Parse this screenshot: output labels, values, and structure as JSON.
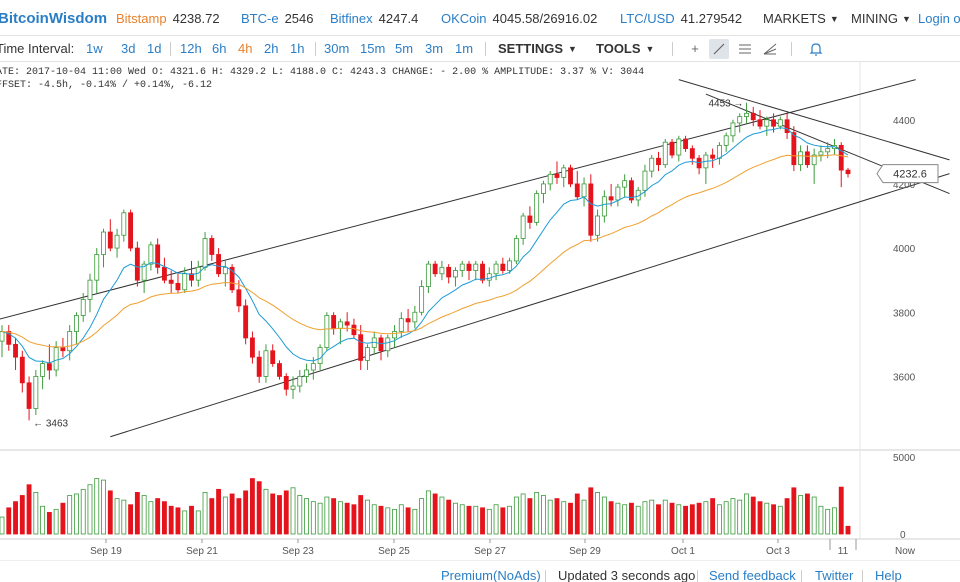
{
  "topbar": {
    "logo": "BitcoinWisdom",
    "tickers": [
      {
        "exchange": "Bitstamp",
        "price": "4238.72",
        "active": true
      },
      {
        "exchange": "BTC-e",
        "price": "2546",
        "active": false
      },
      {
        "exchange": "Bitfinex",
        "price": "4247.4",
        "active": false
      },
      {
        "exchange": "OKCoin",
        "price": "4045.58/26916.02",
        "active": false
      },
      {
        "exchange": "LTC/USD",
        "price": "41.279542",
        "active": false
      }
    ],
    "markets_label": "MARKETS",
    "mining_label": "MINING",
    "login_label": "Login or"
  },
  "toolbar": {
    "interval_label": "Time Interval:",
    "intervals": [
      "1w",
      "3d",
      "1d",
      "12h",
      "6h",
      "4h",
      "2h",
      "1h",
      "30m",
      "15m",
      "5m",
      "3m",
      "1m"
    ],
    "active_interval": "4h",
    "settings_label": "SETTINGS",
    "tools_label": "TOOLS"
  },
  "info": {
    "line1": "ATE: 2017-10-04 11:00 Wed    O: 4321.6    H: 4329.2    L: 4188.0    C: 4243.3    CHANGE: - 2.00 %    AMPLITUDE: 3.37 %    V: 3044",
    "line2": "FFSET: -4.5h, -0.14% / +0.14%, -6.12"
  },
  "colors": {
    "up": "#3c9b3c",
    "down": "#e5141c",
    "ema_fast": "#1d9bd6",
    "ema_slow": "#f0a030",
    "trend": "#333333",
    "accent": "#2a7ec6",
    "orange": "#e9812d"
  },
  "chart_data": {
    "type": "candlestick",
    "price_axis": {
      "ticks": [
        3600,
        3800,
        4000,
        4200,
        4400
      ],
      "range": [
        3380,
        4580
      ]
    },
    "volume_axis": {
      "ticks": [
        0,
        5000
      ],
      "range": [
        0,
        5000
      ]
    },
    "x_labels": [
      "Sep 19",
      "Sep 21",
      "Sep 23",
      "Sep 25",
      "Sep 27",
      "Sep 29",
      "Oct 1",
      "Oct 3",
      "11",
      "Now"
    ],
    "last_price_label": "4232.6",
    "high_annotation": "4453 →",
    "low_annotation": "← 3463",
    "high_value": 4453,
    "low_value": 3463,
    "candles": [
      [
        3710,
        3760,
        3660,
        3740,
        1100
      ],
      [
        3740,
        3760,
        3680,
        3700,
        1700
      ],
      [
        3700,
        3720,
        3620,
        3660,
        2100
      ],
      [
        3660,
        3680,
        3550,
        3580,
        2500
      ],
      [
        3580,
        3600,
        3463,
        3500,
        3200
      ],
      [
        3500,
        3620,
        3480,
        3600,
        2700
      ],
      [
        3600,
        3650,
        3560,
        3640,
        1800
      ],
      [
        3640,
        3700,
        3590,
        3620,
        1400
      ],
      [
        3620,
        3710,
        3600,
        3690,
        1600
      ],
      [
        3690,
        3720,
        3660,
        3680,
        2000
      ],
      [
        3680,
        3760,
        3650,
        3740,
        2500
      ],
      [
        3740,
        3800,
        3700,
        3790,
        2600
      ],
      [
        3790,
        3860,
        3770,
        3840,
        2900
      ],
      [
        3840,
        3920,
        3800,
        3900,
        3200
      ],
      [
        3900,
        4000,
        3860,
        3980,
        3600
      ],
      [
        3980,
        4060,
        3940,
        4050,
        3500
      ],
      [
        4050,
        4090,
        3990,
        4000,
        2800
      ],
      [
        4000,
        4060,
        3970,
        4040,
        2300
      ],
      [
        4040,
        4120,
        4020,
        4110,
        2200
      ],
      [
        4110,
        4120,
        3990,
        4000,
        1900
      ],
      [
        4000,
        4020,
        3880,
        3900,
        2700
      ],
      [
        3900,
        3960,
        3860,
        3950,
        2500
      ],
      [
        3950,
        4020,
        3930,
        4010,
        2100
      ],
      [
        4010,
        4030,
        3920,
        3940,
        2300
      ],
      [
        3940,
        3970,
        3890,
        3900,
        2100
      ],
      [
        3900,
        3930,
        3860,
        3890,
        1800
      ],
      [
        3890,
        3920,
        3860,
        3870,
        1700
      ],
      [
        3870,
        3940,
        3860,
        3920,
        1500
      ],
      [
        3920,
        3960,
        3880,
        3900,
        1800
      ],
      [
        3900,
        3960,
        3880,
        3940,
        1500
      ],
      [
        3940,
        4050,
        3930,
        4030,
        2700
      ],
      [
        4030,
        4040,
        3960,
        3980,
        2300
      ],
      [
        3980,
        4000,
        3910,
        3920,
        2900
      ],
      [
        3920,
        3960,
        3880,
        3940,
        2400
      ],
      [
        3940,
        3950,
        3860,
        3870,
        2600
      ],
      [
        3870,
        3900,
        3800,
        3820,
        2300
      ],
      [
        3820,
        3840,
        3700,
        3720,
        2800
      ],
      [
        3720,
        3740,
        3640,
        3660,
        3600
      ],
      [
        3660,
        3680,
        3580,
        3600,
        3400
      ],
      [
        3600,
        3700,
        3580,
        3680,
        2900
      ],
      [
        3680,
        3700,
        3630,
        3640,
        2600
      ],
      [
        3640,
        3650,
        3590,
        3600,
        2500
      ],
      [
        3600,
        3610,
        3540,
        3560,
        2800
      ],
      [
        3560,
        3600,
        3530,
        3570,
        3000
      ],
      [
        3570,
        3620,
        3550,
        3600,
        2500
      ],
      [
        3600,
        3640,
        3580,
        3620,
        2300
      ],
      [
        3620,
        3660,
        3590,
        3640,
        2100
      ],
      [
        3640,
        3700,
        3620,
        3690,
        2000
      ],
      [
        3690,
        3800,
        3680,
        3790,
        2400
      ],
      [
        3790,
        3800,
        3730,
        3750,
        2300
      ],
      [
        3750,
        3780,
        3700,
        3770,
        2100
      ],
      [
        3770,
        3800,
        3740,
        3760,
        2000
      ],
      [
        3760,
        3780,
        3720,
        3730,
        1900
      ],
      [
        3730,
        3760,
        3620,
        3650,
        2500
      ],
      [
        3650,
        3700,
        3620,
        3690,
        2200
      ],
      [
        3690,
        3740,
        3670,
        3720,
        1900
      ],
      [
        3720,
        3730,
        3650,
        3680,
        1800
      ],
      [
        3680,
        3730,
        3660,
        3720,
        1700
      ],
      [
        3720,
        3760,
        3690,
        3740,
        1600
      ],
      [
        3740,
        3800,
        3720,
        3780,
        1900
      ],
      [
        3780,
        3810,
        3740,
        3770,
        1700
      ],
      [
        3770,
        3820,
        3750,
        3800,
        1600
      ],
      [
        3800,
        3900,
        3790,
        3880,
        2300
      ],
      [
        3880,
        3960,
        3860,
        3950,
        2800
      ],
      [
        3950,
        3960,
        3910,
        3920,
        2600
      ],
      [
        3920,
        3960,
        3900,
        3940,
        2400
      ],
      [
        3940,
        3950,
        3890,
        3910,
        2200
      ],
      [
        3910,
        3940,
        3880,
        3930,
        2000
      ],
      [
        3930,
        3960,
        3910,
        3950,
        1900
      ],
      [
        3950,
        3960,
        3900,
        3930,
        1800
      ],
      [
        3930,
        3960,
        3900,
        3950,
        1800
      ],
      [
        3950,
        3960,
        3890,
        3900,
        1700
      ],
      [
        3900,
        3940,
        3880,
        3920,
        1600
      ],
      [
        3920,
        3960,
        3900,
        3950,
        1900
      ],
      [
        3950,
        3970,
        3920,
        3930,
        1700
      ],
      [
        3930,
        3970,
        3920,
        3960,
        1800
      ],
      [
        3960,
        4040,
        3950,
        4030,
        2400
      ],
      [
        4030,
        4110,
        4010,
        4100,
        2600
      ],
      [
        4100,
        4130,
        4060,
        4080,
        2300
      ],
      [
        4080,
        4180,
        4070,
        4170,
        2700
      ],
      [
        4170,
        4210,
        4140,
        4200,
        2500
      ],
      [
        4200,
        4240,
        4180,
        4230,
        2200
      ],
      [
        4230,
        4270,
        4200,
        4220,
        2300
      ],
      [
        4220,
        4260,
        4190,
        4250,
        2100
      ],
      [
        4250,
        4260,
        4190,
        4200,
        2000
      ],
      [
        4200,
        4240,
        4150,
        4160,
        2600
      ],
      [
        4160,
        4220,
        4130,
        4200,
        2200
      ],
      [
        4200,
        4230,
        4020,
        4040,
        3000
      ],
      [
        4040,
        4120,
        4020,
        4100,
        2700
      ],
      [
        4100,
        4180,
        4080,
        4160,
        2400
      ],
      [
        4160,
        4200,
        4130,
        4150,
        2100
      ],
      [
        4150,
        4200,
        4130,
        4190,
        2000
      ],
      [
        4190,
        4230,
        4160,
        4210,
        1900
      ],
      [
        4210,
        4220,
        4140,
        4150,
        2000
      ],
      [
        4150,
        4190,
        4130,
        4180,
        1800
      ],
      [
        4180,
        4260,
        4160,
        4240,
        2100
      ],
      [
        4240,
        4290,
        4220,
        4280,
        2200
      ],
      [
        4280,
        4300,
        4240,
        4260,
        1900
      ],
      [
        4260,
        4340,
        4250,
        4330,
        2200
      ],
      [
        4330,
        4340,
        4280,
        4290,
        2000
      ],
      [
        4290,
        4350,
        4270,
        4340,
        1900
      ],
      [
        4340,
        4350,
        4300,
        4310,
        1800
      ],
      [
        4310,
        4320,
        4260,
        4280,
        1900
      ],
      [
        4280,
        4290,
        4230,
        4250,
        2000
      ],
      [
        4250,
        4300,
        4200,
        4290,
        2100
      ],
      [
        4290,
        4310,
        4250,
        4280,
        2300
      ],
      [
        4280,
        4330,
        4260,
        4320,
        1900
      ],
      [
        4320,
        4360,
        4300,
        4350,
        2100
      ],
      [
        4350,
        4400,
        4330,
        4390,
        2300
      ],
      [
        4390,
        4420,
        4360,
        4410,
        2200
      ],
      [
        4410,
        4453,
        4390,
        4420,
        2600
      ],
      [
        4420,
        4440,
        4380,
        4400,
        2400
      ],
      [
        4400,
        4430,
        4370,
        4380,
        2100
      ],
      [
        4380,
        4410,
        4350,
        4400,
        2000
      ],
      [
        4400,
        4420,
        4360,
        4380,
        1900
      ],
      [
        4380,
        4410,
        4370,
        4400,
        1800
      ],
      [
        4400,
        4420,
        4340,
        4360,
        2300
      ],
      [
        4360,
        4380,
        4240,
        4260,
        3000
      ],
      [
        4260,
        4320,
        4240,
        4300,
        2500
      ],
      [
        4300,
        4320,
        4250,
        4260,
        2600
      ],
      [
        4260,
        4310,
        4200,
        4290,
        2400
      ],
      [
        4290,
        4320,
        4270,
        4300,
        1800
      ],
      [
        4300,
        4330,
        4280,
        4310,
        1600
      ],
      [
        4310,
        4340,
        4290,
        4320,
        1700
      ],
      [
        4320,
        4330,
        4190,
        4243,
        3044
      ],
      [
        4243,
        4250,
        4220,
        4232,
        500
      ]
    ]
  },
  "footer": {
    "premium": "Premium(NoAds)",
    "status": "Updated 3 seconds ago",
    "feedback": "Send feedback",
    "twitter": "Twitter",
    "help": "Help"
  }
}
